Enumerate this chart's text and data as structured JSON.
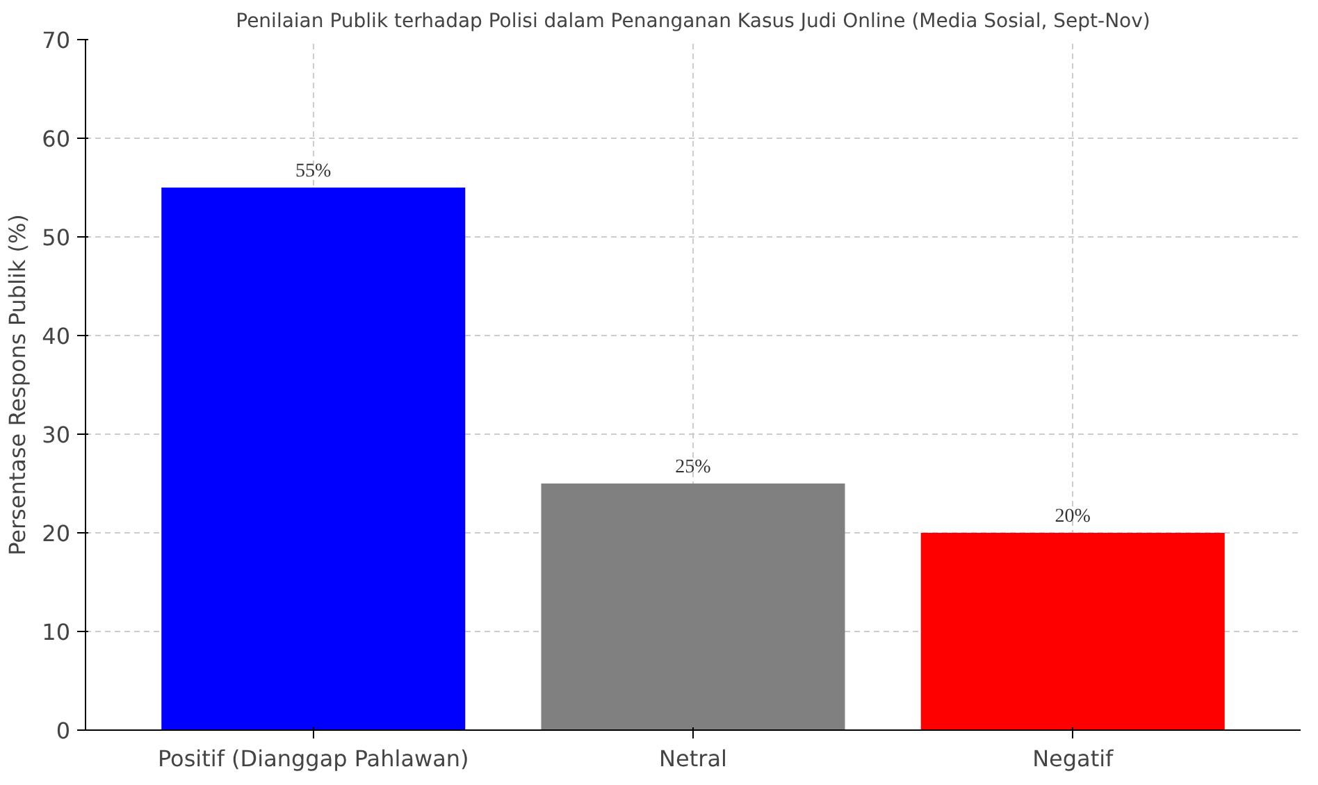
{
  "chart_data": {
    "type": "bar",
    "title": "Penilaian Publik terhadap Polisi dalam Penanganan Kasus Judi Online (Media Sosial, Sept-Nov)",
    "ylabel": "Persentase Respons Publik (%)",
    "categories": [
      "Positif (Dianggap Pahlawan)",
      "Netral",
      "Negatif"
    ],
    "values": [
      55,
      25,
      20
    ],
    "colors": [
      "#0000ff",
      "#808080",
      "#ff0000"
    ],
    "value_labels": [
      "55%",
      "25%",
      "20%"
    ],
    "ylim": [
      0,
      70
    ],
    "yticks": [
      0,
      10,
      20,
      30,
      40,
      50,
      60,
      70
    ],
    "grid": true
  }
}
